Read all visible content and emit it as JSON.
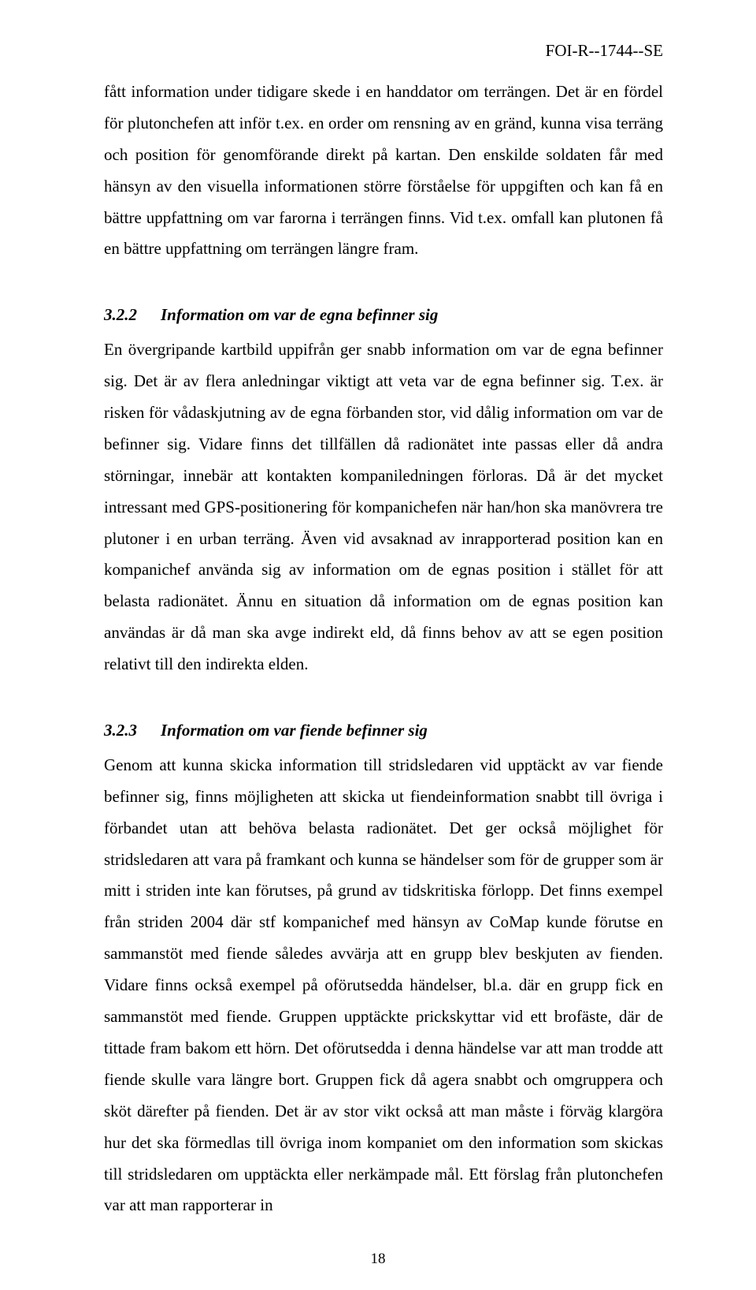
{
  "header": {
    "doc_id": "FOI-R--1744--SE"
  },
  "paragraphs": {
    "p1": "fått information under tidigare skede i en handdator om terrängen. Det är en fördel för plutonchefen att inför t.ex. en order om rensning av en gränd, kunna visa terräng och position för genomförande direkt på kartan. Den enskilde soldaten får med hänsyn av den visuella informationen större förståelse för uppgiften och kan få en bättre uppfattning om var farorna i terrängen finns. Vid t.ex. omfall kan plutonen få en bättre uppfattning om terrängen längre fram.",
    "p2": "En övergripande kartbild uppifrån ger snabb information om var de egna befinner sig. Det är av flera anledningar viktigt att veta var de egna befinner sig. T.ex. är risken för vådaskjutning av de egna förbanden stor, vid dålig information om var de befinner sig. Vidare finns det tillfällen då radionätet inte passas eller då andra störningar, innebär att kontakten kompaniledningen förloras. Då är det mycket intressant med GPS-positionering för kompanichefen när han/hon ska manövrera tre plutoner i en urban terräng. Även vid avsaknad av inrapporterad position kan en kompanichef använda sig av information om de egnas position i stället för att belasta radionätet. Ännu en situation då information om de egnas position kan användas är då man ska avge indirekt eld, då finns behov av att se egen position relativt till den indirekta elden.",
    "p3": "Genom att kunna skicka information till stridsledaren vid upptäckt av var fiende befinner sig, finns möjligheten att skicka ut fiendeinformation snabbt till övriga i förbandet utan att behöva belasta radionätet. Det ger också möjlighet för stridsledaren att vara på framkant och kunna se händelser som för de grupper som är mitt i striden inte kan förutses, på grund av tidskritiska förlopp. Det finns exempel från striden 2004 där stf kompanichef med hänsyn av CoMap kunde förutse en sammanstöt med fiende således avvärja att en grupp blev beskjuten av fienden. Vidare finns också exempel på oförutsedda händelser, bl.a. där en grupp fick en sammanstöt med fiende. Gruppen upptäckte prickskyttar vid ett brofäste, där de tittade fram bakom ett hörn. Det oförutsedda i denna händelse var att man trodde att fiende skulle vara längre bort. Gruppen fick då agera snabbt och omgruppera och sköt därefter på fienden. Det är av stor vikt också att man måste i förväg klargöra hur det ska förmedlas till övriga inom kompaniet om den information som skickas till stridsledaren om upptäckta eller nerkämpade mål. Ett förslag från plutonchefen var att man rapporterar in"
  },
  "headings": {
    "h322_num": "3.2.2",
    "h322_title": "Information om var de egna befinner sig",
    "h323_num": "3.2.3",
    "h323_title": "Information om var fiende befinner sig"
  },
  "footer": {
    "page_number": "18"
  }
}
